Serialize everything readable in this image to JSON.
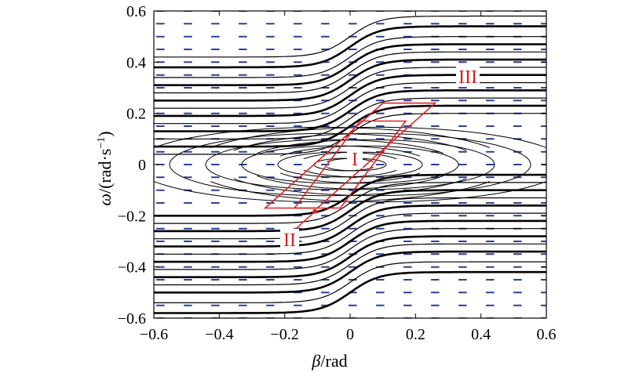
{
  "chart_data": {
    "type": "line",
    "subtype": "phase portrait with vector field",
    "xlabel_symbol": "β",
    "xlabel_unit": "/rad",
    "ylabel_symbol": "ω",
    "ylabel_unit": "/(rad·s",
    "ylabel_exponent": "−1",
    "ylabel_close": ")",
    "xlim": [
      -0.6,
      0.6
    ],
    "ylim": [
      -0.6,
      0.6
    ],
    "x_ticks": [
      "−0.6",
      "−0.4",
      "−0.2",
      "0",
      "0.2",
      "0.4",
      "0.6"
    ],
    "y_ticks": [
      "0.6",
      "0.4",
      "0.2",
      "0",
      "−0.2",
      "−0.4",
      "−0.6"
    ],
    "x_tick_values": [
      -0.6,
      -0.4,
      -0.2,
      0,
      0.2,
      0.4,
      0.6
    ],
    "y_tick_values": [
      0.6,
      0.4,
      0.2,
      0,
      -0.2,
      -0.4,
      -0.6
    ],
    "grid": false,
    "colors": {
      "trajectory": "#000000",
      "vector_field": "#2b3f93",
      "region": "#e02222"
    },
    "trajectory_levels": [
      -0.58,
      -0.54,
      -0.5,
      -0.47,
      -0.44,
      -0.41,
      -0.38,
      -0.35,
      -0.32,
      -0.29,
      -0.26,
      -0.23,
      -0.2,
      0.2,
      0.23,
      0.26,
      0.29,
      0.32,
      0.35,
      0.38,
      0.41,
      0.44,
      0.47,
      0.5,
      0.54,
      0.58
    ],
    "spiral_levels": [
      0.03,
      0.06,
      0.09,
      0.12,
      0.15,
      0.18
    ],
    "region_I": {
      "label": "I",
      "vertices": [
        [
          -0.03,
          -0.17
        ],
        [
          0.17,
          0.17
        ],
        [
          0.03,
          0.17
        ],
        [
          -0.17,
          -0.17
        ]
      ]
    },
    "region_II": {
      "label": "II",
      "vertices": [
        [
          -0.1,
          -0.17
        ],
        [
          0.26,
          0.24
        ],
        [
          0.1,
          0.24
        ],
        [
          -0.26,
          -0.17
        ]
      ]
    },
    "region_III": {
      "label": "III",
      "position": [
        0.29,
        0.39
      ]
    },
    "annotations": [
      "I",
      "II",
      "III"
    ]
  }
}
